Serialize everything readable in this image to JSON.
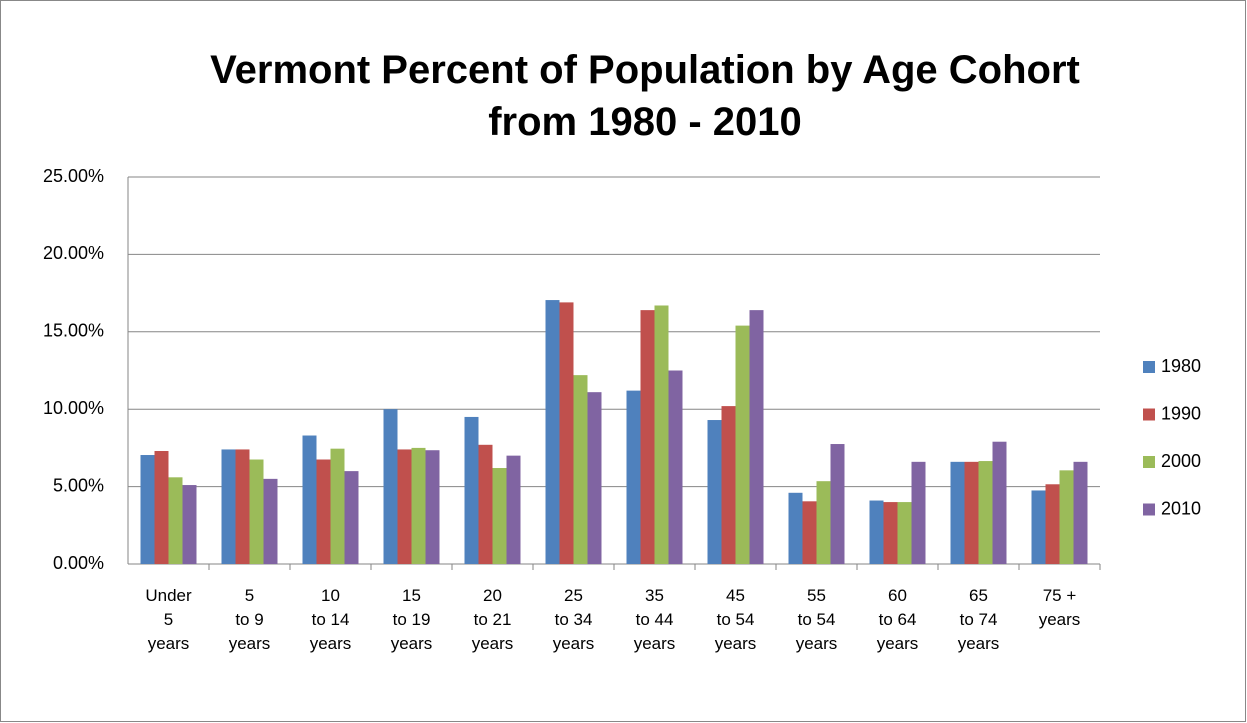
{
  "chart_data": {
    "type": "bar",
    "title": "Vermont Percent of Population by Age Cohort\nfrom 1980 - 2010",
    "categories": [
      "Under\n5\nyears",
      "5\nto 9\nyears",
      "10\nto 14\nyears",
      "15\nto 19\nyears",
      "20\nto 21\nyears",
      "25\nto 34\nyears",
      "35\nto 44\nyears",
      "45\nto 54\nyears",
      "55\nto 54\nyears",
      "60\nto 64\nyears",
      "65\nto 74\nyears",
      "75 +\nyears"
    ],
    "series": [
      {
        "name": "1980",
        "color": "#4f81bd",
        "values": [
          7.04,
          7.4,
          8.3,
          10.0,
          9.5,
          17.05,
          11.2,
          9.3,
          4.6,
          4.1,
          6.6,
          4.75
        ]
      },
      {
        "name": "1990",
        "color": "#c0504d",
        "values": [
          7.3,
          7.4,
          6.75,
          7.4,
          7.7,
          16.9,
          16.4,
          10.2,
          4.05,
          4.0,
          6.6,
          5.15
        ]
      },
      {
        "name": "2000",
        "color": "#9bbb59",
        "values": [
          5.6,
          6.75,
          7.45,
          7.5,
          6.2,
          12.2,
          16.7,
          15.4,
          5.35,
          4.0,
          6.65,
          6.05
        ]
      },
      {
        "name": "2010",
        "color": "#8064a2",
        "values": [
          5.1,
          5.5,
          6.0,
          7.35,
          7.0,
          11.1,
          12.5,
          16.4,
          7.75,
          6.6,
          7.9,
          6.6
        ]
      }
    ],
    "ylim": [
      0,
      25
    ],
    "yticks": [
      {
        "value": 0,
        "label": "0.00%"
      },
      {
        "value": 5,
        "label": "5.00%"
      },
      {
        "value": 10,
        "label": "10.00%"
      },
      {
        "value": 15,
        "label": "15.00%"
      },
      {
        "value": 20,
        "label": "20.00%"
      },
      {
        "value": 25,
        "label": "25.00%"
      }
    ],
    "grid": true,
    "legend": "right"
  }
}
